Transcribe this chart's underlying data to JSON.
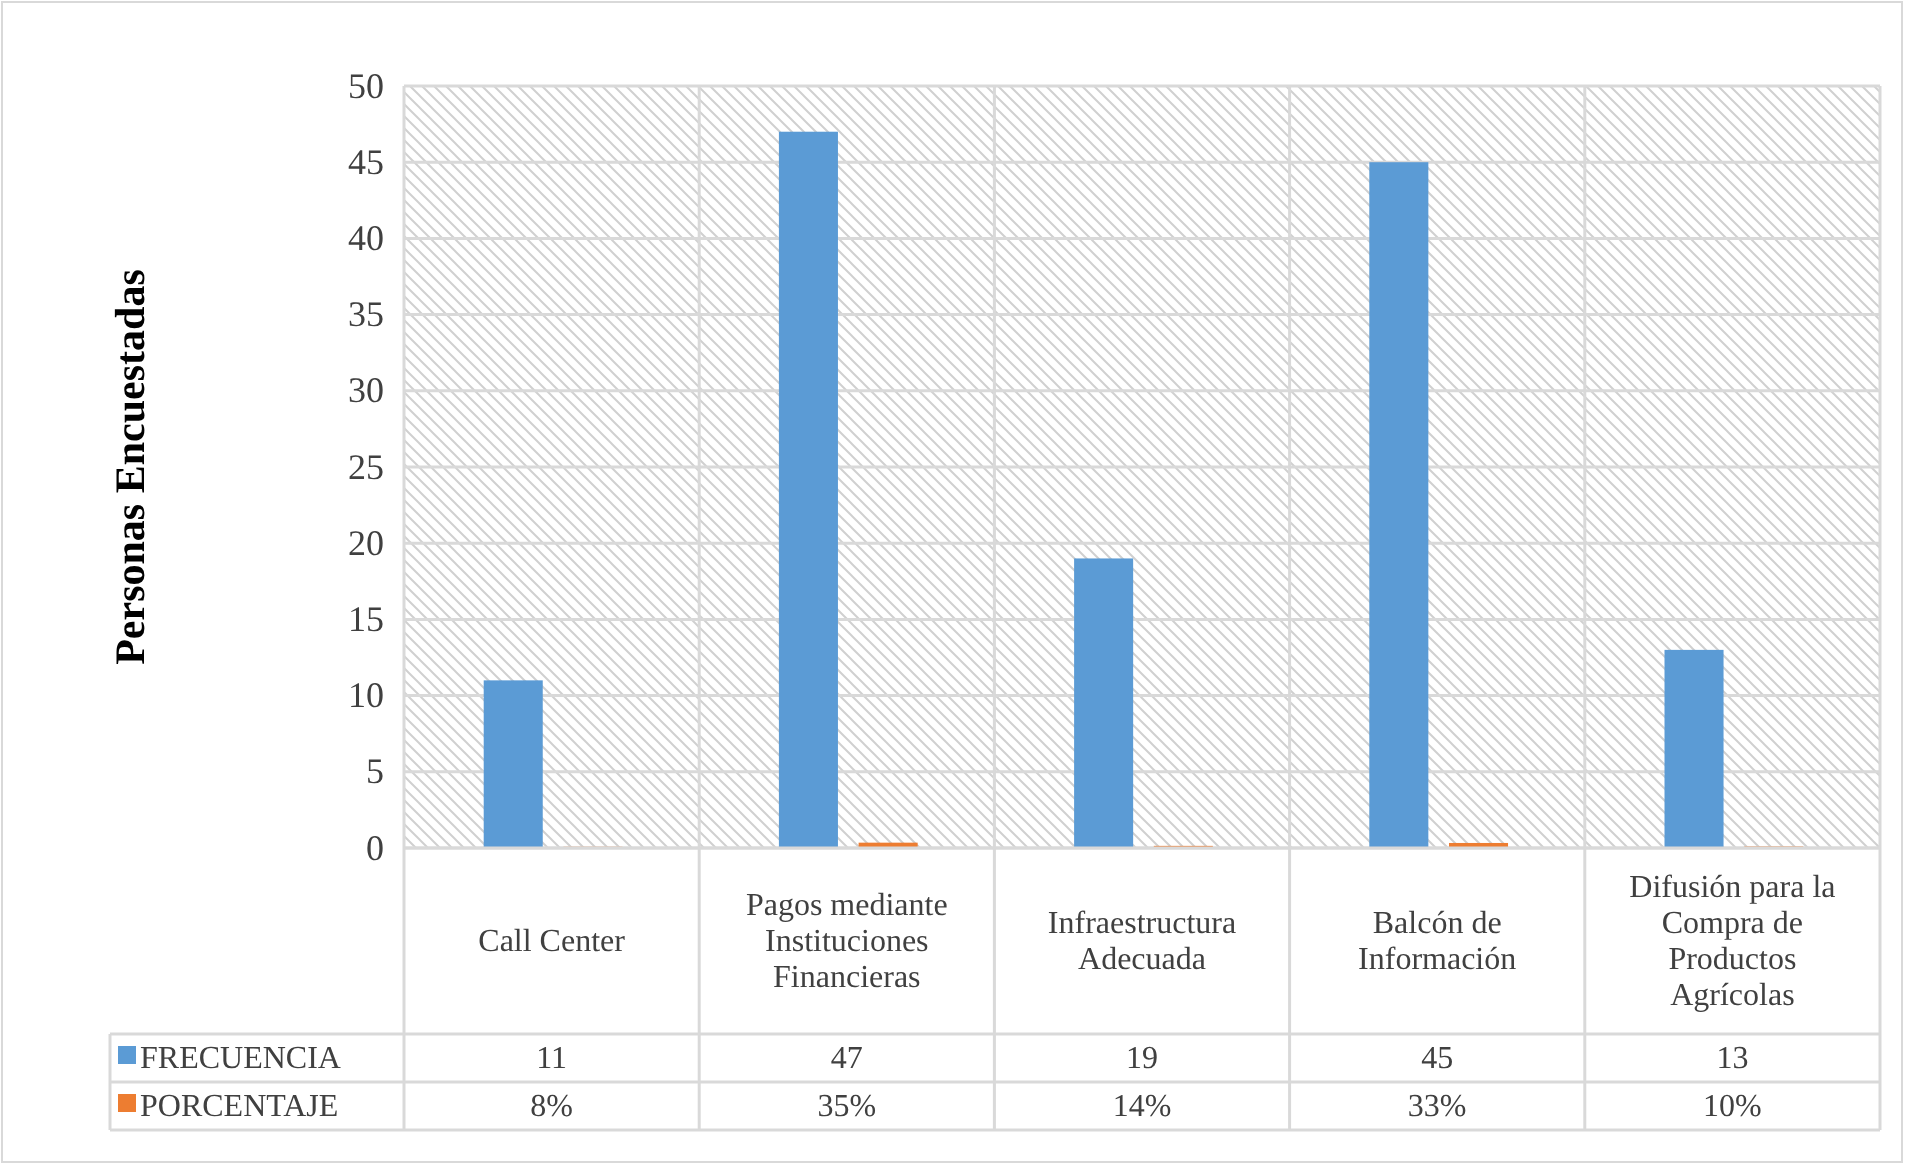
{
  "chart_data": {
    "type": "bar",
    "ylabel": "Personas Encuestadas",
    "categories": [
      "Call Center",
      "Pagos mediante Instituciones Financieras",
      "Infraestructura Adecuada",
      "Balcón de Información",
      "Difusión para la Compra de Productos Agrícolas"
    ],
    "series": [
      {
        "name": "FRECUENCIA",
        "color": "#5b9bd5",
        "values": [
          11,
          47,
          19,
          45,
          13
        ],
        "value_labels": [
          "11",
          "47",
          "19",
          "45",
          "13"
        ]
      },
      {
        "name": "PORCENTAJE",
        "color": "#ed7d31",
        "values": [
          0.08,
          0.35,
          0.14,
          0.33,
          0.1
        ],
        "value_labels": [
          "8%",
          "35%",
          "14%",
          "33%",
          "10%"
        ]
      }
    ],
    "ylim": [
      0,
      50
    ],
    "yticks": [
      0,
      5,
      10,
      15,
      20,
      25,
      30,
      35,
      40,
      45,
      50
    ],
    "grid": true,
    "legend": "bottom left"
  }
}
